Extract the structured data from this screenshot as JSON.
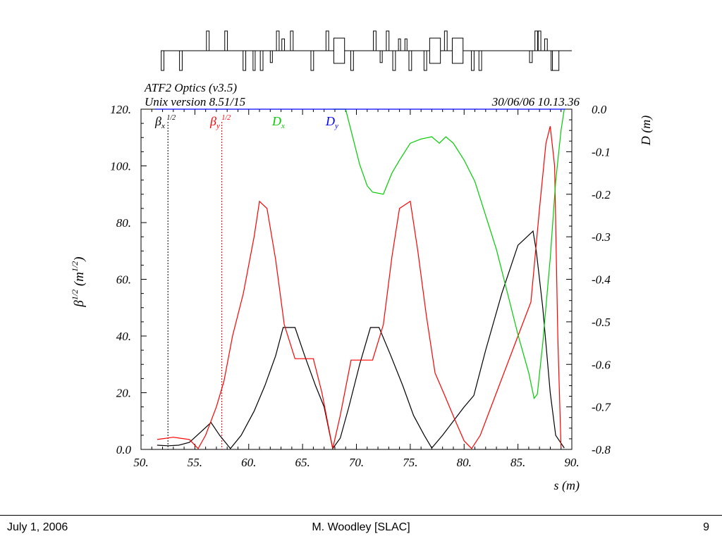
{
  "chart_data": {
    "type": "line",
    "title": "ATF2 Optics (v3.5)",
    "subtitle": "Unix version 8.51/15",
    "timestamp": "30/06/06   10.13.36",
    "xlabel": "s (m)",
    "ylabel_left": "β",
    "ylabel_left_sup": "1/2",
    "ylabel_left_unit": "(m",
    "ylabel_left_unit_sup": "1/2",
    "ylabel_left_close": ")",
    "ylabel_right": "D (m)",
    "xlim": [
      50,
      90
    ],
    "ylim_left": [
      0,
      120
    ],
    "ylim_right": [
      -0.8,
      0.0
    ],
    "x_ticks": [
      "50.",
      "55.",
      "60.",
      "65.",
      "70.",
      "75.",
      "80.",
      "85.",
      "90."
    ],
    "x_tick_values": [
      50,
      55,
      60,
      65,
      70,
      75,
      80,
      85,
      90
    ],
    "y_left_ticks": [
      "0.0",
      "20.",
      "40.",
      "60.",
      "80.",
      "100.",
      "120."
    ],
    "y_left_tick_values": [
      0,
      20,
      40,
      60,
      80,
      100,
      120
    ],
    "y_right_ticks": [
      "0.0",
      "-0.1",
      "-0.2",
      "-0.3",
      "-0.4",
      "-0.5",
      "-0.6",
      "-0.7",
      "-0.8"
    ],
    "y_right_tick_values": [
      0.0,
      -0.1,
      -0.2,
      -0.3,
      -0.4,
      -0.5,
      -0.6,
      -0.7,
      -0.8
    ],
    "legend": [
      {
        "symbol": "β",
        "sub": "x",
        "sup": "1/2",
        "color": "#000000"
      },
      {
        "symbol": "β",
        "sub": "y",
        "sup": "1/2",
        "color": "#ff0000"
      },
      {
        "symbol": "D",
        "sub": "x",
        "sup": "",
        "color": "#00cc00"
      },
      {
        "symbol": "D",
        "sub": "y",
        "sup": "",
        "color": "#0000ff"
      }
    ],
    "series": [
      {
        "key": "betax",
        "axis": "left",
        "color": "#000000",
        "x": [
          51.5,
          52.5,
          53.5,
          54.5,
          55.5,
          56.5,
          57.3,
          58.3,
          59.3,
          60.5,
          61.5,
          62.5,
          63.2,
          64.3,
          65.2,
          66.2,
          67.0,
          67.8,
          68.5,
          69.3,
          70.3,
          71.3,
          72.1,
          73.2,
          74.3,
          75.3,
          76.3,
          77.0,
          78.0,
          79.0,
          80.0,
          80.9,
          82.0,
          83.5,
          85.0,
          86.4,
          86.7,
          87.3,
          88.0,
          88.5,
          89.3
        ],
        "y": [
          1.5,
          1.3,
          1.5,
          2.5,
          6.0,
          9.5,
          5.0,
          0.3,
          5.0,
          13.5,
          22.5,
          33.0,
          43.0,
          43.0,
          33.0,
          22.5,
          15.0,
          0.3,
          4.0,
          15.0,
          30.0,
          43.0,
          43.0,
          33.0,
          22.5,
          12.0,
          5.0,
          0.5,
          5.0,
          10.0,
          15.0,
          19.0,
          35.0,
          55.0,
          72.0,
          77.0,
          70.0,
          50.0,
          20.0,
          5.0,
          0.5
        ]
      },
      {
        "key": "betay",
        "axis": "left",
        "color": "#ff0000",
        "x": [
          51.5,
          53.0,
          54.5,
          55.3,
          56.0,
          57.0,
          57.7,
          58.5,
          59.5,
          60.5,
          61.0,
          61.7,
          62.5,
          63.3,
          64.3,
          65.2,
          66.0,
          66.8,
          67.8,
          68.5,
          69.5,
          70.5,
          71.5,
          72.5,
          73.3,
          74.0,
          75.0,
          75.7,
          76.5,
          77.3,
          78.2,
          79.2,
          80.0,
          80.7,
          81.5,
          83.0,
          84.5,
          86.2,
          87.0,
          87.6,
          88.0,
          88.4,
          88.7,
          89.0
        ],
        "y": [
          3.5,
          4.3,
          3.5,
          0.3,
          5.0,
          15.0,
          24.0,
          40.0,
          55.0,
          75.0,
          87.5,
          85.0,
          67.0,
          44.0,
          32.0,
          32.0,
          32.0,
          20.0,
          0.3,
          12.0,
          31.5,
          31.5,
          31.5,
          44.0,
          68.0,
          85.0,
          87.5,
          70.0,
          47.0,
          27.0,
          19.0,
          10.0,
          3.0,
          0.3,
          5.0,
          20.0,
          35.0,
          52.0,
          85.0,
          108.0,
          114.0,
          100.0,
          40.0,
          0.5
        ]
      },
      {
        "key": "dx",
        "axis": "right",
        "color": "#00cc00",
        "x": [
          67.8,
          69.0,
          70.3,
          71.0,
          71.5,
          72.5,
          73.3,
          74.0,
          75.0,
          76.0,
          77.0,
          77.7,
          78.3,
          79.0,
          80.0,
          81.0,
          82.0,
          83.0,
          84.0,
          85.0,
          86.0,
          86.5,
          86.8,
          87.3,
          88.0,
          88.5,
          89.0,
          89.3
        ],
        "y": [
          0.0,
          0.0,
          -0.13,
          -0.18,
          -0.195,
          -0.2,
          -0.15,
          -0.12,
          -0.08,
          -0.07,
          -0.065,
          -0.08,
          -0.065,
          -0.08,
          -0.12,
          -0.17,
          -0.25,
          -0.33,
          -0.43,
          -0.53,
          -0.62,
          -0.68,
          -0.67,
          -0.55,
          -0.35,
          -0.17,
          -0.05,
          0.0
        ]
      },
      {
        "key": "dy",
        "axis": "right",
        "color": "#0000ff",
        "x": [
          51.3,
          89.4
        ],
        "y": [
          0.0,
          0.0
        ]
      }
    ],
    "marker_lines": [
      {
        "x": 52.5,
        "color": "#000000"
      },
      {
        "x": 57.5,
        "color": "#ff0000"
      }
    ]
  },
  "beamline_elements": {
    "baseline_s": [
      50,
      90
    ],
    "items": [
      {
        "s": 52.0,
        "dir": "down",
        "h": 1.0,
        "w": 0.25
      },
      {
        "s": 53.7,
        "dir": "down",
        "h": 1.0,
        "w": 0.25
      },
      {
        "s": 56.2,
        "dir": "up",
        "h": 1.0,
        "w": 0.25
      },
      {
        "s": 57.9,
        "dir": "up",
        "h": 1.0,
        "w": 0.25
      },
      {
        "s": 59.6,
        "dir": "down",
        "h": 1.0,
        "w": 0.25
      },
      {
        "s": 60.5,
        "dir": "down",
        "h": 1.0,
        "w": 0.2
      },
      {
        "s": 61.2,
        "dir": "down",
        "h": 1.0,
        "w": 0.25
      },
      {
        "s": 62.1,
        "dir": "down",
        "h": 0.6,
        "w": 0.1
      },
      {
        "s": 62.7,
        "dir": "up",
        "h": 1.0,
        "w": 0.25
      },
      {
        "s": 63.2,
        "dir": "up",
        "h": 0.6,
        "w": 0.25
      },
      {
        "s": 64.0,
        "dir": "up",
        "h": 1.0,
        "w": 0.25
      },
      {
        "s": 65.9,
        "dir": "down",
        "h": 1.0,
        "w": 0.25
      },
      {
        "s": 67.3,
        "dir": "up",
        "h": 1.0,
        "w": 0.25
      },
      {
        "s": 68.4,
        "dir": "both",
        "h": 0.8,
        "w": 1.0
      },
      {
        "s": 69.6,
        "dir": "down",
        "h": 1.0,
        "w": 0.25
      },
      {
        "s": 71.7,
        "dir": "up",
        "h": 1.0,
        "w": 0.25
      },
      {
        "s": 72.3,
        "dir": "down",
        "h": 0.6,
        "w": 0.2
      },
      {
        "s": 72.9,
        "dir": "up",
        "h": 1.0,
        "w": 0.25
      },
      {
        "s": 73.5,
        "dir": "down",
        "h": 1.0,
        "w": 0.25
      },
      {
        "s": 74.0,
        "dir": "up",
        "h": 0.6,
        "w": 0.1
      },
      {
        "s": 74.6,
        "dir": "up",
        "h": 0.6,
        "w": 0.1
      },
      {
        "s": 75.0,
        "dir": "down",
        "h": 1.0,
        "w": 0.25
      },
      {
        "s": 76.4,
        "dir": "down",
        "h": 1.0,
        "w": 0.25
      },
      {
        "s": 77.3,
        "dir": "both",
        "h": 0.8,
        "w": 1.0
      },
      {
        "s": 78.3,
        "dir": "up",
        "h": 1.0,
        "w": 0.25
      },
      {
        "s": 79.4,
        "dir": "both",
        "h": 0.8,
        "w": 1.0
      },
      {
        "s": 80.8,
        "dir": "down",
        "h": 1.0,
        "w": 0.25
      },
      {
        "s": 81.5,
        "dir": "down",
        "h": 1.0,
        "w": 0.25
      },
      {
        "s": 86.2,
        "dir": "down",
        "h": 0.6,
        "w": 0.25
      },
      {
        "s": 86.7,
        "dir": "up",
        "h": 1.0,
        "w": 0.25
      },
      {
        "s": 87.0,
        "dir": "up",
        "h": 1.0,
        "w": 0.25
      },
      {
        "s": 87.6,
        "dir": "up",
        "h": 0.6,
        "w": 0.25
      },
      {
        "s": 88.2,
        "dir": "down",
        "h": 1.0,
        "w": 0.25
      },
      {
        "s": 88.5,
        "dir": "down",
        "h": 1.0,
        "w": 0.6
      }
    ]
  },
  "footer": {
    "date": "July 1, 2006",
    "author": "M. Woodley [SLAC]",
    "page": "9"
  }
}
